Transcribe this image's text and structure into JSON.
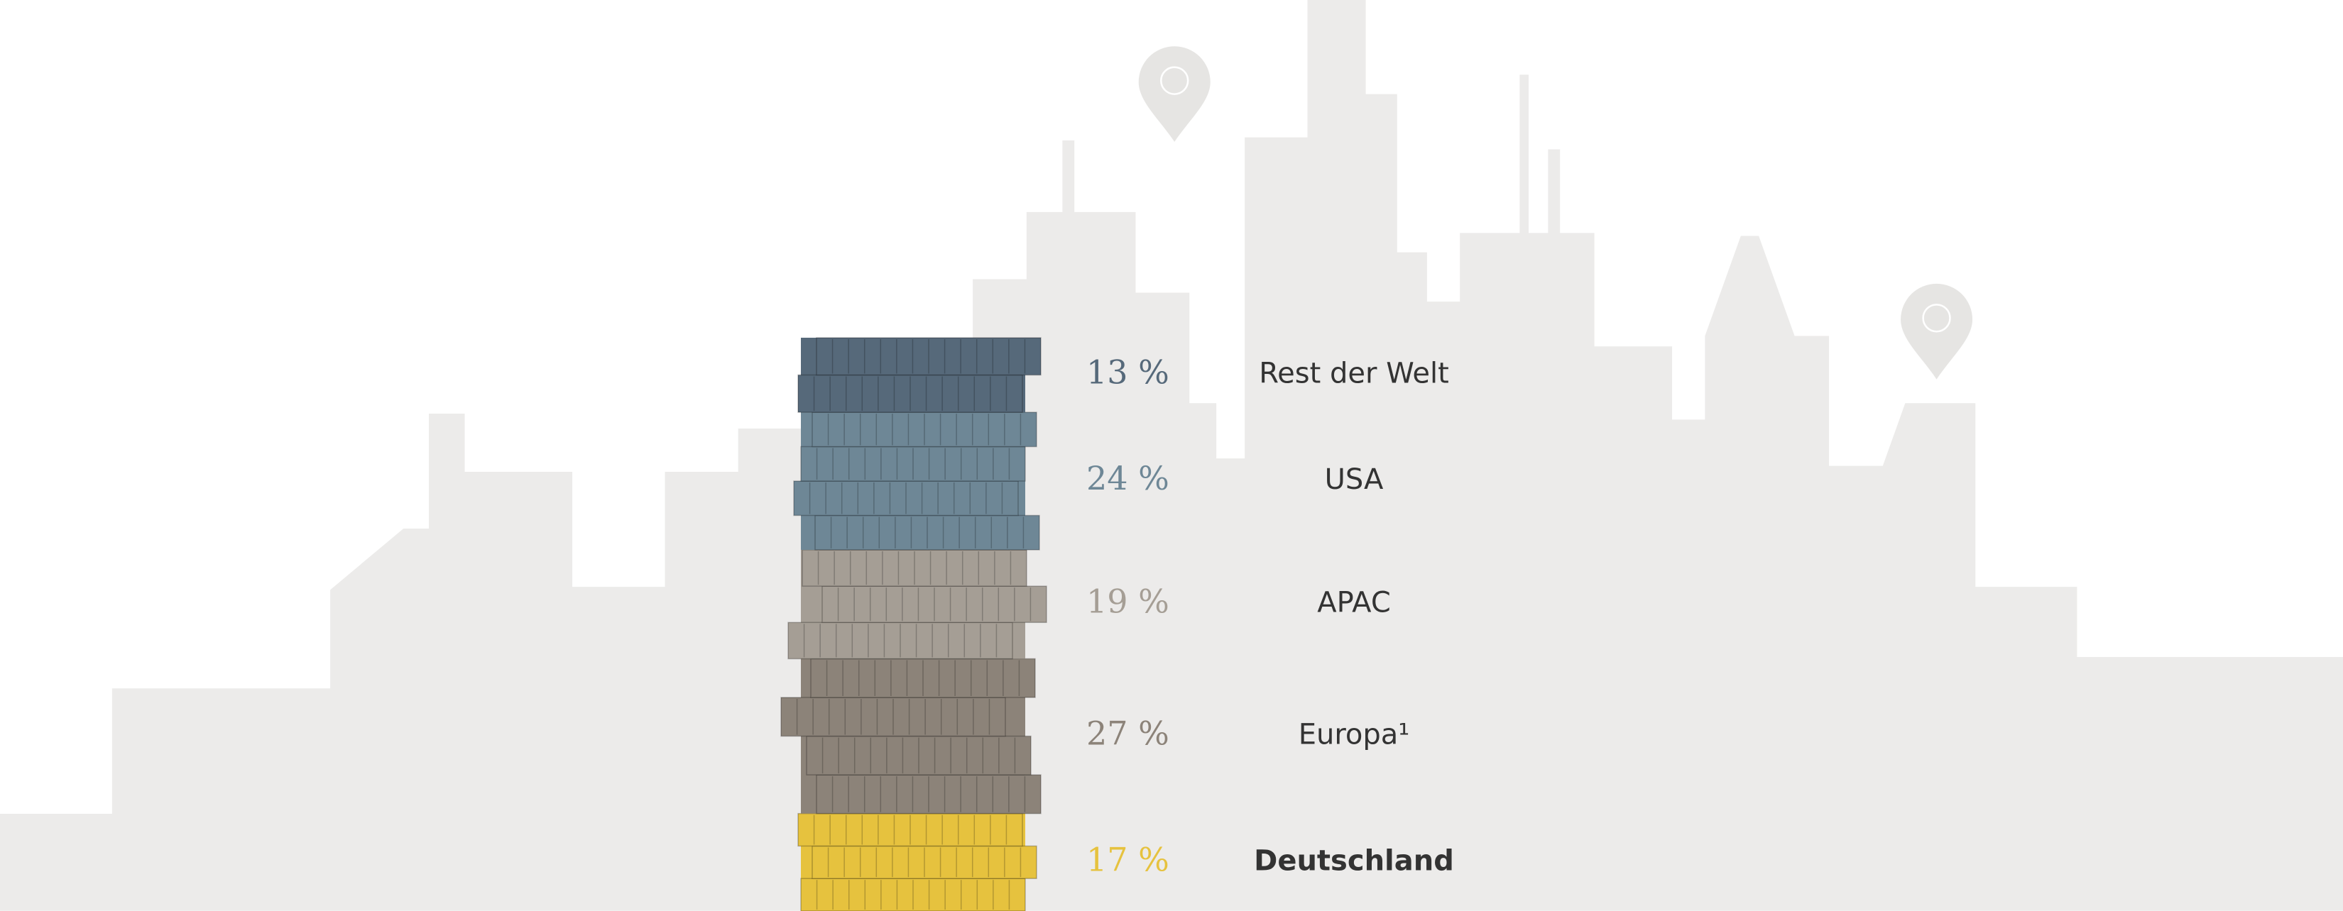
{
  "chart_data": {
    "type": "coin-stack",
    "categories": [
      "Rest der Welt",
      "USA",
      "APAC",
      "Europa¹",
      "Deutschland"
    ],
    "values": [
      13,
      24,
      19,
      27,
      17
    ],
    "value_labels": [
      "13 %",
      "24 %",
      "19 %",
      "27 %",
      "17 %"
    ],
    "colors": [
      "#56697a",
      "#6e8796",
      "#a59e95",
      "#8c8379",
      "#e6c23e"
    ]
  }
}
